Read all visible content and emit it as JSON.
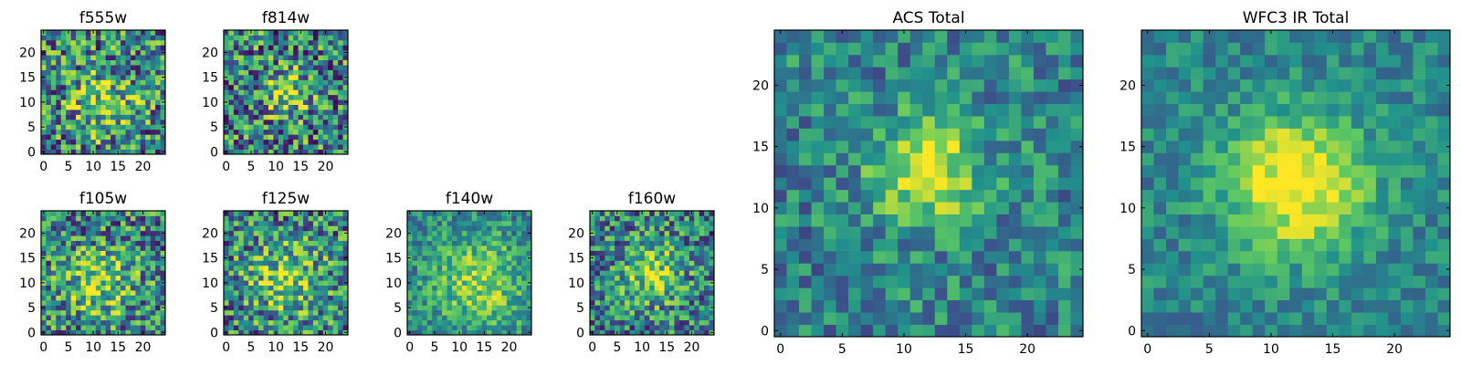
{
  "figure": {
    "name": "filter cutout panels"
  },
  "colormap": [
    "#440154",
    "#3b528b",
    "#21918c",
    "#5ec962",
    "#fde725"
  ],
  "chart_data": [
    {
      "type": "heatmap",
      "id": "f555w",
      "title": "f555w",
      "size": 25,
      "xticks": [
        0,
        5,
        10,
        15,
        20
      ],
      "yticks": [
        0,
        5,
        10,
        15,
        20
      ],
      "peak": [
        12,
        10
      ],
      "signal": 0.25,
      "noise": 0.55,
      "width": 5,
      "seed": 11
    },
    {
      "type": "heatmap",
      "id": "f814w",
      "title": "f814w",
      "size": 25,
      "xticks": [
        0,
        5,
        10,
        15,
        20
      ],
      "yticks": [
        0,
        5,
        10,
        15,
        20
      ],
      "peak": [
        12,
        12
      ],
      "signal": 0.35,
      "noise": 0.55,
      "width": 3,
      "seed": 23
    },
    {
      "type": "heatmap",
      "id": "f105w",
      "title": "f105w",
      "size": 25,
      "xticks": [
        0,
        5,
        10,
        15,
        20
      ],
      "yticks": [
        0,
        5,
        10,
        15,
        20
      ],
      "peak": [
        11,
        10
      ],
      "signal": 0.3,
      "noise": 0.5,
      "width": 5,
      "seed": 37
    },
    {
      "type": "heatmap",
      "id": "f125w",
      "title": "f125w",
      "size": 25,
      "xticks": [
        0,
        5,
        10,
        15,
        20
      ],
      "yticks": [
        0,
        5,
        10,
        15,
        20
      ],
      "peak": [
        12,
        11
      ],
      "signal": 0.3,
      "noise": 0.5,
      "width": 5,
      "seed": 41
    },
    {
      "type": "heatmap",
      "id": "f140w",
      "title": "f140w",
      "size": 25,
      "xticks": [
        0,
        5,
        10,
        15,
        20
      ],
      "yticks": [
        0,
        5,
        10,
        15,
        20
      ],
      "peak": [
        14,
        10
      ],
      "signal": 0.3,
      "noise": 0.3,
      "width": 7,
      "seed": 53
    },
    {
      "type": "heatmap",
      "id": "f160w",
      "title": "f160w",
      "size": 25,
      "xticks": [
        0,
        5,
        10,
        15,
        20
      ],
      "yticks": [
        0,
        5,
        10,
        15,
        20
      ],
      "peak": [
        12,
        12
      ],
      "signal": 0.35,
      "noise": 0.45,
      "width": 4,
      "seed": 67
    },
    {
      "type": "heatmap",
      "id": "acs_total",
      "title": "ACS Total",
      "size": 25,
      "xticks": [
        0,
        5,
        10,
        15,
        20
      ],
      "yticks": [
        0,
        5,
        10,
        15,
        20
      ],
      "peak": [
        12,
        13
      ],
      "signal": 0.45,
      "noise": 0.3,
      "width": 3,
      "seed": 79
    },
    {
      "type": "heatmap",
      "id": "wfc3_ir_total",
      "title": "WFC3 IR Total",
      "size": 25,
      "xticks": [
        0,
        5,
        10,
        15,
        20
      ],
      "yticks": [
        0,
        5,
        10,
        15,
        20
      ],
      "peak": [
        12,
        12
      ],
      "signal": 0.5,
      "noise": 0.2,
      "width": 4,
      "seed": 97
    }
  ]
}
